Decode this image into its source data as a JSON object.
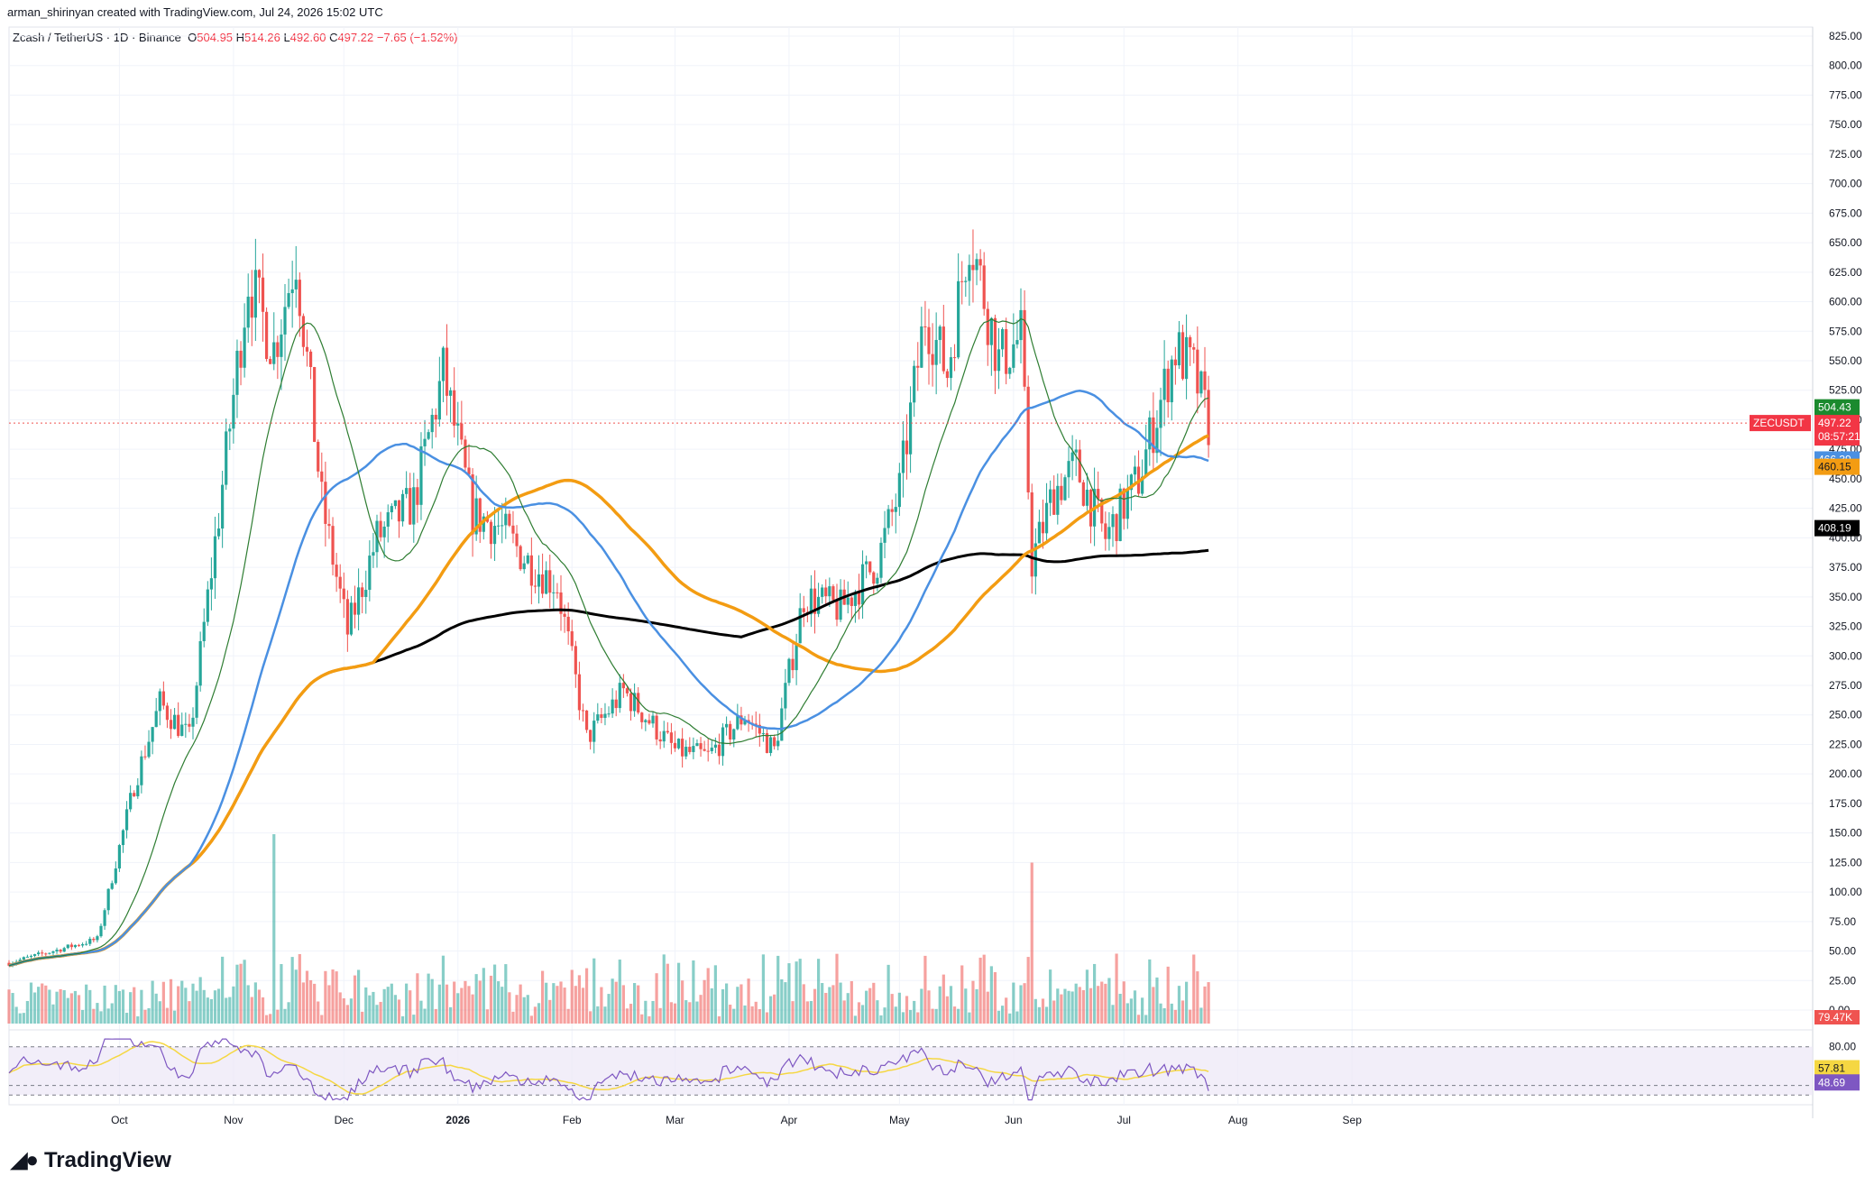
{
  "caption": "arman_shirinyan created with TradingView.com, Jul 24, 2026 15:02 UTC",
  "legend": {
    "title": "Zcash / TetherUS · 1D · Binance",
    "o_label": "O",
    "o": "504.95",
    "h_label": "H",
    "h": "514.26",
    "l_label": "L",
    "l": "492.60",
    "c_label": "C",
    "c": "497.22",
    "change": "−7.65 (−1.52%)"
  },
  "colors": {
    "up": "#26a69a",
    "down": "#ef5350",
    "ma_fast": "#2e7d32",
    "ma_blue": "#4a90e2",
    "ma_orange": "#f39c12",
    "ma_black": "#000000",
    "rsi": "#7e57c2",
    "rsi_ma": "#f5d742",
    "rsi_band": "#ede7f6"
  },
  "chart_data": {
    "type": "candlestick",
    "symbol": "ZECUSDT",
    "y_ticks": [
      "825.00",
      "800.00",
      "775.00",
      "750.00",
      "725.00",
      "700.00",
      "675.00",
      "650.00",
      "625.00",
      "600.00",
      "575.00",
      "550.00",
      "525.00",
      "500.00",
      "475.00",
      "450.00",
      "425.00",
      "400.00",
      "375.00",
      "350.00",
      "325.00",
      "300.00",
      "275.00",
      "250.00",
      "225.00",
      "200.00",
      "175.00",
      "150.00",
      "125.00",
      "100.00",
      "75.00",
      "50.00",
      "25.00",
      "0.00"
    ],
    "ylim": [
      0,
      825
    ],
    "x_labels": [
      "Oct",
      "Nov",
      "Dec",
      "2026",
      "Feb",
      "Mar",
      "Apr",
      "May",
      "Jun",
      "Jul",
      "Aug",
      "Sep"
    ],
    "price_keyframes": [
      [
        "2025-09-01",
        40
      ],
      [
        "2025-09-25",
        60
      ],
      [
        "2025-10-05",
        190
      ],
      [
        "2025-10-12",
        260
      ],
      [
        "2025-10-20",
        230
      ],
      [
        "2025-10-28",
        420
      ],
      [
        "2025-11-05",
        620
      ],
      [
        "2025-11-12",
        560
      ],
      [
        "2025-11-18",
        640
      ],
      [
        "2025-11-25",
        430
      ],
      [
        "2025-12-02",
        320
      ],
      [
        "2025-12-10",
        400
      ],
      [
        "2025-12-20",
        430
      ],
      [
        "2025-12-28",
        540
      ],
      [
        "2026-01-05",
        420
      ],
      [
        "2026-01-12",
        410
      ],
      [
        "2026-01-20",
        380
      ],
      [
        "2026-01-28",
        360
      ],
      [
        "2026-02-05",
        230
      ],
      [
        "2026-02-15",
        270
      ],
      [
        "2026-03-01",
        220
      ],
      [
        "2026-03-10",
        215
      ],
      [
        "2026-03-20",
        250
      ],
      [
        "2026-03-28",
        220
      ],
      [
        "2026-04-05",
        350
      ],
      [
        "2026-04-15",
        340
      ],
      [
        "2026-04-25",
        380
      ],
      [
        "2026-05-01",
        440
      ],
      [
        "2026-05-08",
        590
      ],
      [
        "2026-05-14",
        540
      ],
      [
        "2026-05-20",
        660
      ],
      [
        "2026-05-28",
        550
      ],
      [
        "2026-06-03",
        570
      ],
      [
        "2026-06-06",
        380
      ],
      [
        "2026-06-12",
        440
      ],
      [
        "2026-06-18",
        460
      ],
      [
        "2026-06-26",
        400
      ],
      [
        "2026-07-05",
        450
      ],
      [
        "2026-07-15",
        560
      ],
      [
        "2026-07-20",
        540
      ],
      [
        "2026-07-24",
        497
      ]
    ],
    "last_values": {
      "close_label": "ZECUSDT",
      "close": "497.22",
      "countdown": "08:57:21",
      "ma_green": "504.43",
      "ma_blue": "466.39",
      "ma_orange": "460.15",
      "ma_black": "408.19"
    },
    "volume_last": "79.47K",
    "volume_spikes": [
      [
        "2025-11-12",
        1.0
      ],
      [
        "2026-06-06",
        0.85
      ]
    ],
    "rsi": {
      "levels": [
        "80.00",
        "40.00"
      ],
      "value": "48.69",
      "ma_value": "57.81"
    }
  },
  "footer": {
    "brand": "TradingView"
  }
}
